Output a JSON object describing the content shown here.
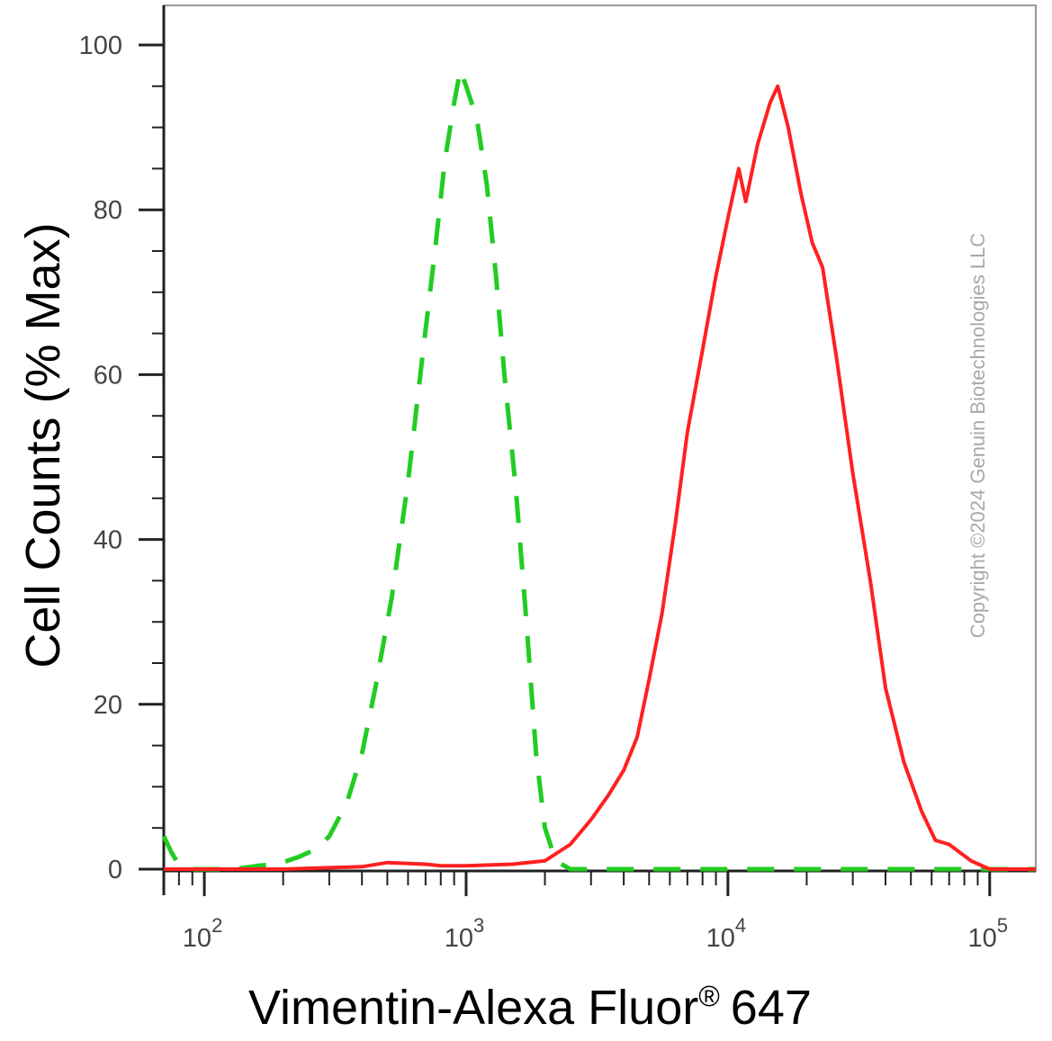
{
  "chart_data": {
    "type": "line",
    "xlabel": "Vimentin-Alexa Fluor",
    "xlabel_superscript": "®",
    "xlabel_suffix": "647",
    "ylabel": "Cell Counts (% Max)",
    "x_scale": "log",
    "xlim": [
      70,
      150000
    ],
    "ylim": [
      0,
      105
    ],
    "x_ticks": [
      {
        "value": 100,
        "base": "10",
        "exp": "2"
      },
      {
        "value": 1000,
        "base": "10",
        "exp": "3"
      },
      {
        "value": 10000,
        "base": "10",
        "exp": "4"
      },
      {
        "value": 100000,
        "base": "10",
        "exp": "5"
      }
    ],
    "y_ticks": [
      0,
      20,
      40,
      60,
      80,
      100
    ],
    "grid": false,
    "legend": "none",
    "series": [
      {
        "style": "dashed",
        "color": "#22cc22",
        "points": [
          [
            70,
            4
          ],
          [
            75,
            2
          ],
          [
            80,
            0.5
          ],
          [
            90,
            0
          ],
          [
            130,
            0
          ],
          [
            160,
            0.4
          ],
          [
            190,
            0.6
          ],
          [
            230,
            1.5
          ],
          [
            270,
            2.5
          ],
          [
            300,
            4
          ],
          [
            350,
            8
          ],
          [
            400,
            14
          ],
          [
            450,
            22
          ],
          [
            520,
            33
          ],
          [
            600,
            47
          ],
          [
            680,
            62
          ],
          [
            760,
            75
          ],
          [
            830,
            86
          ],
          [
            900,
            93
          ],
          [
            950,
            97
          ],
          [
            1000,
            95
          ],
          [
            1100,
            91
          ],
          [
            1200,
            83
          ],
          [
            1300,
            72
          ],
          [
            1400,
            60
          ],
          [
            1550,
            46
          ],
          [
            1700,
            30
          ],
          [
            1850,
            14
          ],
          [
            2000,
            5
          ],
          [
            2200,
            1
          ],
          [
            2500,
            0
          ],
          [
            150000,
            0
          ]
        ]
      },
      {
        "style": "solid",
        "color": "#ff2020",
        "points": [
          [
            70,
            0
          ],
          [
            200,
            0
          ],
          [
            400,
            0.3
          ],
          [
            500,
            0.8
          ],
          [
            700,
            0.6
          ],
          [
            800,
            0.4
          ],
          [
            1000,
            0.4
          ],
          [
            1500,
            0.6
          ],
          [
            2000,
            1
          ],
          [
            2500,
            3
          ],
          [
            3000,
            6
          ],
          [
            3500,
            9
          ],
          [
            4000,
            12
          ],
          [
            4500,
            16
          ],
          [
            5000,
            23
          ],
          [
            5600,
            31
          ],
          [
            6300,
            42
          ],
          [
            7000,
            53
          ],
          [
            8000,
            63
          ],
          [
            9000,
            72
          ],
          [
            10000,
            79
          ],
          [
            11000,
            85
          ],
          [
            11700,
            81
          ],
          [
            13000,
            88
          ],
          [
            14500,
            93
          ],
          [
            15500,
            95
          ],
          [
            17000,
            90
          ],
          [
            19000,
            82
          ],
          [
            21000,
            76
          ],
          [
            23000,
            73
          ],
          [
            26000,
            62
          ],
          [
            30000,
            48
          ],
          [
            35000,
            35
          ],
          [
            40000,
            22
          ],
          [
            47000,
            13
          ],
          [
            55000,
            7
          ],
          [
            62000,
            3.5
          ],
          [
            70000,
            3
          ],
          [
            85000,
            1
          ],
          [
            100000,
            0
          ],
          [
            150000,
            0
          ]
        ]
      }
    ]
  },
  "watermark": "Copyright ©2024 Genuin Biotechnologies LLC"
}
